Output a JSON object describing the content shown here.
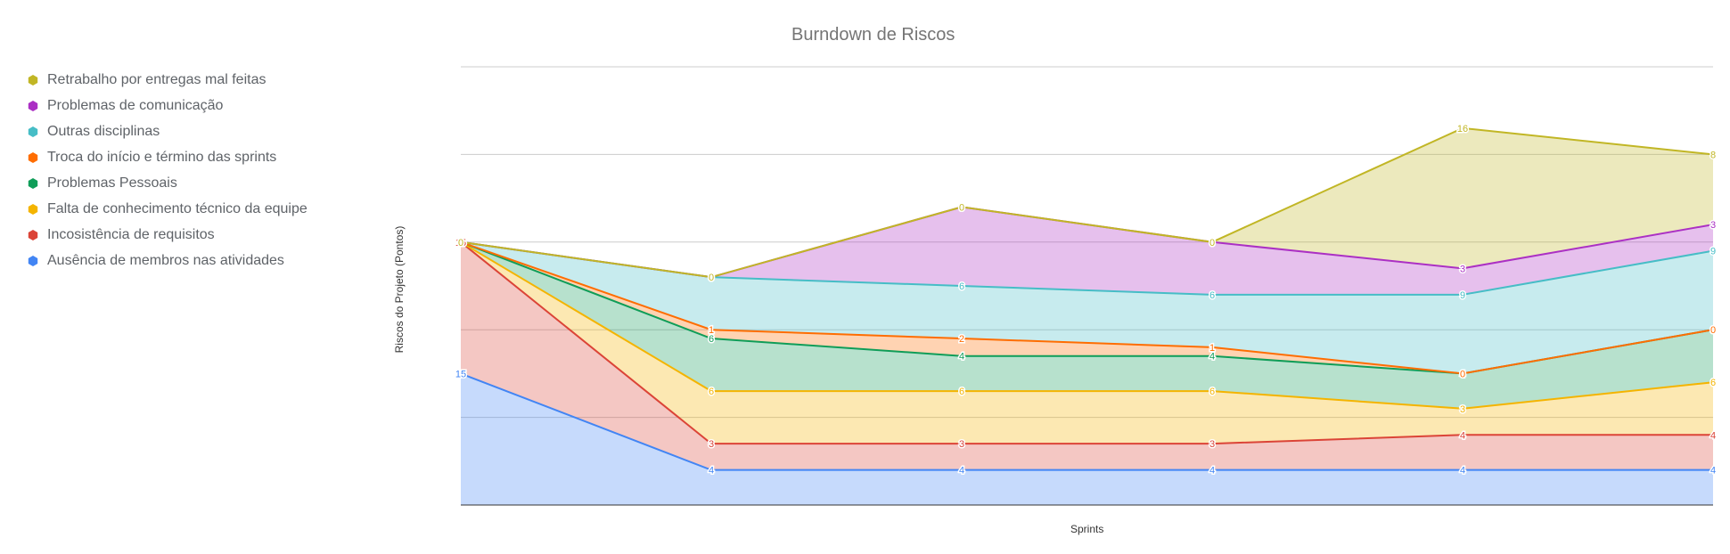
{
  "chart_data": {
    "type": "area",
    "stacked": true,
    "title": "Burndown de Riscos",
    "xlabel": "Sprints",
    "ylabel": "Riscos do Projeto (Pontos)",
    "x": [
      "",
      "",
      "",
      "",
      "",
      ""
    ],
    "ylim": [
      0,
      50
    ],
    "grid": true,
    "legend_position": "left",
    "series": [
      {
        "name": "Ausência de membros nas atividades",
        "color": "#4285f4",
        "values": [
          15,
          4,
          4,
          4,
          4,
          4
        ]
      },
      {
        "name": "Incosistência de requisitos",
        "color": "#db4437",
        "values": [
          15,
          3,
          3,
          3,
          4,
          4
        ]
      },
      {
        "name": "Falta de conhecimento técnico da equipe",
        "color": "#f4b400",
        "values": [
          0,
          6,
          6,
          6,
          3,
          6
        ]
      },
      {
        "name": "Problemas Pessoais",
        "color": "#0f9d58",
        "values": [
          0,
          6,
          4,
          4,
          4,
          6
        ]
      },
      {
        "name": "Troca do início e término das sprints",
        "color": "#ff6d01",
        "values": [
          0,
          1,
          2,
          1,
          0,
          0
        ]
      },
      {
        "name": "Outras disciplinas",
        "color": "#46bdc6",
        "values": [
          0,
          6,
          6,
          6,
          9,
          9
        ]
      },
      {
        "name": "Problemas de comunicação",
        "color": "#ab30c4",
        "values": [
          0,
          0,
          9,
          6,
          3,
          3
        ]
      },
      {
        "name": "Retrabalho por entregas mal feitas",
        "color": "#c1b625",
        "values": [
          0,
          0,
          0,
          0,
          16,
          8
        ]
      }
    ]
  }
}
